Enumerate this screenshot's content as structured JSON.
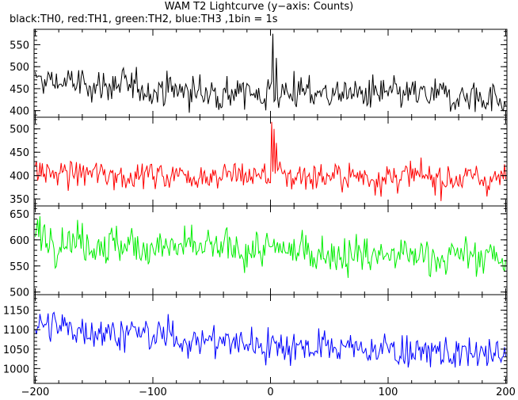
{
  "title": "WAM T2 Lightcurve (y−axis: Counts)",
  "subtitle": "black:TH0, red:TH1, green:TH2, blue:TH3 ,1bin = 1s",
  "chart_data": {
    "type": "line",
    "xlim": [
      -201,
      201
    ],
    "x_ticks": [
      -200,
      -100,
      0,
      100,
      200
    ],
    "x_tick_labels": [
      "−200",
      "−100",
      "0",
      "100",
      "200"
    ],
    "bin_seconds": 1,
    "xlabel": "",
    "ylabel": "Counts",
    "panels": [
      {
        "name": "TH0",
        "color": "#000000",
        "ylim": [
          385,
          585
        ],
        "y_ticks": [
          400,
          450,
          500,
          550
        ],
        "baseline": [
          [
            -200,
            468
          ],
          [
            -150,
            458
          ],
          [
            -100,
            450
          ],
          [
            -50,
            440
          ],
          [
            0,
            440
          ],
          [
            50,
            440
          ],
          [
            100,
            435
          ],
          [
            150,
            432
          ],
          [
            200,
            430
          ]
        ],
        "noise": 30,
        "peaks": [
          {
            "t": 2,
            "value": 575
          },
          {
            "t": 5,
            "value": 520
          },
          {
            "t": 20,
            "value": 490
          }
        ]
      },
      {
        "name": "TH1",
        "color": "#ff0000",
        "ylim": [
          335,
          525
        ],
        "y_ticks": [
          350,
          400,
          450,
          500
        ],
        "baseline": [
          [
            -200,
            405
          ],
          [
            -100,
            402
          ],
          [
            0,
            400
          ],
          [
            100,
            397
          ],
          [
            200,
            393
          ]
        ],
        "noise": 25,
        "peaks": [
          {
            "t": 1,
            "value": 515
          },
          {
            "t": 3,
            "value": 500
          },
          {
            "t": 5,
            "value": 470
          }
        ]
      },
      {
        "name": "TH2",
        "color": "#00ee00",
        "ylim": [
          495,
          665
        ],
        "y_ticks": [
          500,
          550,
          600,
          650
        ],
        "baseline": [
          [
            -200,
            610
          ],
          [
            -150,
            595
          ],
          [
            -100,
            585
          ],
          [
            0,
            580
          ],
          [
            100,
            570
          ],
          [
            200,
            568
          ]
        ],
        "noise": 30,
        "peaks": []
      },
      {
        "name": "TH3",
        "color": "#0000ff",
        "ylim": [
          962,
          1190
        ],
        "y_ticks": [
          1000,
          1050,
          1100,
          1150
        ],
        "baseline": [
          [
            -200,
            1110
          ],
          [
            -150,
            1100
          ],
          [
            -100,
            1085
          ],
          [
            -50,
            1070
          ],
          [
            0,
            1062
          ],
          [
            50,
            1055
          ],
          [
            100,
            1048
          ],
          [
            150,
            1040
          ],
          [
            200,
            1030
          ]
        ],
        "noise": 35,
        "peaks": []
      }
    ]
  }
}
